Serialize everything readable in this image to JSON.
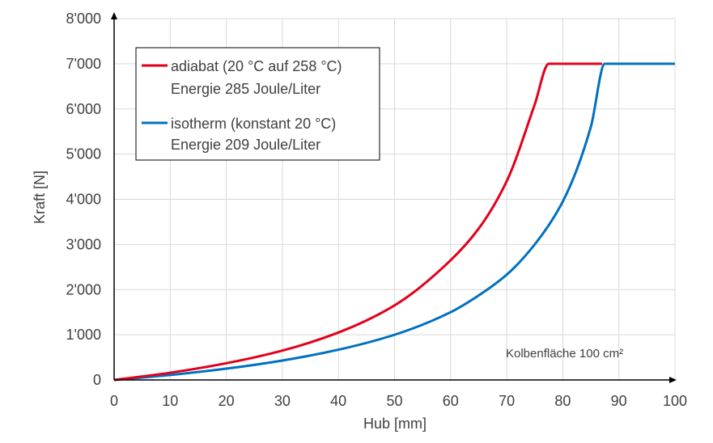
{
  "chart_data": {
    "type": "line",
    "xlabel": "Hub  [mm]",
    "ylabel": "Kraft [N]",
    "xlim": [
      0,
      100
    ],
    "ylim": [
      0,
      8000
    ],
    "x_ticks": [
      0,
      10,
      20,
      30,
      40,
      50,
      60,
      70,
      80,
      90,
      100
    ],
    "x_tick_labels": [
      "0",
      "10",
      "20",
      "30",
      "40",
      "50",
      "60",
      "70",
      "80",
      "90",
      "100"
    ],
    "y_ticks": [
      0,
      1000,
      2000,
      3000,
      4000,
      5000,
      6000,
      7000,
      8000
    ],
    "y_tick_labels": [
      "0",
      "1'000",
      "2'000",
      "3'000",
      "4'000",
      "5'000",
      "6'000",
      "7'000",
      "8'000"
    ],
    "grid": true,
    "legend_position": "top-left",
    "annotation": "Kolbenfläche 100 cm²",
    "series": [
      {
        "name": "adiabat",
        "legend_line1": "adiabat (20 °C auf 258 °C)",
        "legend_line2": "Energie 285 Joule/Liter",
        "color": "#e3001b",
        "x": [
          0,
          10,
          20,
          30,
          40,
          50,
          60,
          65,
          70,
          75,
          77.5,
          87
        ],
        "y": [
          0,
          160,
          370,
          650,
          1050,
          1650,
          2650,
          3350,
          4400,
          6100,
          7000,
          7000
        ]
      },
      {
        "name": "isotherm",
        "legend_line1": "isotherm (konstant 20 °C)",
        "legend_line2": "Energie 209 Joule/Liter",
        "color": "#0070c0",
        "x": [
          0,
          10,
          20,
          30,
          40,
          50,
          60,
          65,
          70,
          75,
          80,
          85,
          87.5,
          100
        ],
        "y": [
          0,
          110,
          250,
          430,
          670,
          1000,
          1500,
          1870,
          2330,
          3000,
          3950,
          5600,
          7000,
          7000
        ]
      }
    ]
  }
}
